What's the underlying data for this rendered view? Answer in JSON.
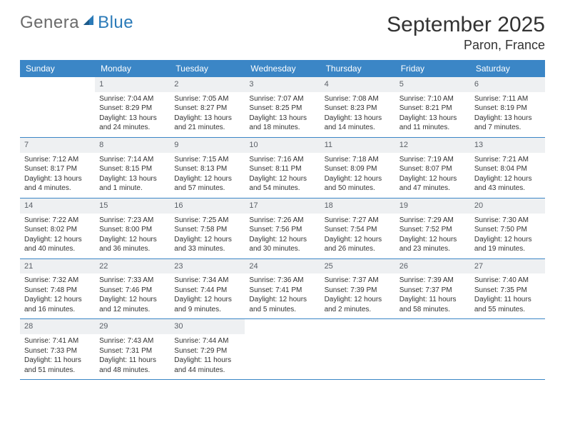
{
  "logo": {
    "text_left": "Genera",
    "text_right": "Blue",
    "sail_color": "#2a7ab8"
  },
  "title": "September 2025",
  "location": "Paron, France",
  "header_bg": "#3b86c6",
  "header_text_color": "#ffffff",
  "dayname_bg": "#eef0f2",
  "divider_color": "#3b86c6",
  "weekdays": [
    "Sunday",
    "Monday",
    "Tuesday",
    "Wednesday",
    "Thursday",
    "Friday",
    "Saturday"
  ],
  "weeks": [
    [
      {
        "blank": true
      },
      {
        "n": "1",
        "sunrise": "7:04 AM",
        "sunset": "8:29 PM",
        "daylight": "13 hours and 24 minutes."
      },
      {
        "n": "2",
        "sunrise": "7:05 AM",
        "sunset": "8:27 PM",
        "daylight": "13 hours and 21 minutes."
      },
      {
        "n": "3",
        "sunrise": "7:07 AM",
        "sunset": "8:25 PM",
        "daylight": "13 hours and 18 minutes."
      },
      {
        "n": "4",
        "sunrise": "7:08 AM",
        "sunset": "8:23 PM",
        "daylight": "13 hours and 14 minutes."
      },
      {
        "n": "5",
        "sunrise": "7:10 AM",
        "sunset": "8:21 PM",
        "daylight": "13 hours and 11 minutes."
      },
      {
        "n": "6",
        "sunrise": "7:11 AM",
        "sunset": "8:19 PM",
        "daylight": "13 hours and 7 minutes."
      }
    ],
    [
      {
        "n": "7",
        "sunrise": "7:12 AM",
        "sunset": "8:17 PM",
        "daylight": "13 hours and 4 minutes."
      },
      {
        "n": "8",
        "sunrise": "7:14 AM",
        "sunset": "8:15 PM",
        "daylight": "13 hours and 1 minute."
      },
      {
        "n": "9",
        "sunrise": "7:15 AM",
        "sunset": "8:13 PM",
        "daylight": "12 hours and 57 minutes."
      },
      {
        "n": "10",
        "sunrise": "7:16 AM",
        "sunset": "8:11 PM",
        "daylight": "12 hours and 54 minutes."
      },
      {
        "n": "11",
        "sunrise": "7:18 AM",
        "sunset": "8:09 PM",
        "daylight": "12 hours and 50 minutes."
      },
      {
        "n": "12",
        "sunrise": "7:19 AM",
        "sunset": "8:07 PM",
        "daylight": "12 hours and 47 minutes."
      },
      {
        "n": "13",
        "sunrise": "7:21 AM",
        "sunset": "8:04 PM",
        "daylight": "12 hours and 43 minutes."
      }
    ],
    [
      {
        "n": "14",
        "sunrise": "7:22 AM",
        "sunset": "8:02 PM",
        "daylight": "12 hours and 40 minutes."
      },
      {
        "n": "15",
        "sunrise": "7:23 AM",
        "sunset": "8:00 PM",
        "daylight": "12 hours and 36 minutes."
      },
      {
        "n": "16",
        "sunrise": "7:25 AM",
        "sunset": "7:58 PM",
        "daylight": "12 hours and 33 minutes."
      },
      {
        "n": "17",
        "sunrise": "7:26 AM",
        "sunset": "7:56 PM",
        "daylight": "12 hours and 30 minutes."
      },
      {
        "n": "18",
        "sunrise": "7:27 AM",
        "sunset": "7:54 PM",
        "daylight": "12 hours and 26 minutes."
      },
      {
        "n": "19",
        "sunrise": "7:29 AM",
        "sunset": "7:52 PM",
        "daylight": "12 hours and 23 minutes."
      },
      {
        "n": "20",
        "sunrise": "7:30 AM",
        "sunset": "7:50 PM",
        "daylight": "12 hours and 19 minutes."
      }
    ],
    [
      {
        "n": "21",
        "sunrise": "7:32 AM",
        "sunset": "7:48 PM",
        "daylight": "12 hours and 16 minutes."
      },
      {
        "n": "22",
        "sunrise": "7:33 AM",
        "sunset": "7:46 PM",
        "daylight": "12 hours and 12 minutes."
      },
      {
        "n": "23",
        "sunrise": "7:34 AM",
        "sunset": "7:44 PM",
        "daylight": "12 hours and 9 minutes."
      },
      {
        "n": "24",
        "sunrise": "7:36 AM",
        "sunset": "7:41 PM",
        "daylight": "12 hours and 5 minutes."
      },
      {
        "n": "25",
        "sunrise": "7:37 AM",
        "sunset": "7:39 PM",
        "daylight": "12 hours and 2 minutes."
      },
      {
        "n": "26",
        "sunrise": "7:39 AM",
        "sunset": "7:37 PM",
        "daylight": "11 hours and 58 minutes."
      },
      {
        "n": "27",
        "sunrise": "7:40 AM",
        "sunset": "7:35 PM",
        "daylight": "11 hours and 55 minutes."
      }
    ],
    [
      {
        "n": "28",
        "sunrise": "7:41 AM",
        "sunset": "7:33 PM",
        "daylight": "11 hours and 51 minutes."
      },
      {
        "n": "29",
        "sunrise": "7:43 AM",
        "sunset": "7:31 PM",
        "daylight": "11 hours and 48 minutes."
      },
      {
        "n": "30",
        "sunrise": "7:44 AM",
        "sunset": "7:29 PM",
        "daylight": "11 hours and 44 minutes."
      },
      {
        "blank": true
      },
      {
        "blank": true
      },
      {
        "blank": true
      },
      {
        "blank": true
      }
    ]
  ],
  "labels": {
    "sunrise": "Sunrise:",
    "sunset": "Sunset:",
    "daylight": "Daylight:"
  },
  "fonts": {
    "title_pt": 30,
    "location_pt": 18,
    "header_pt": 12,
    "daynum_pt": 11,
    "body_pt": 10
  }
}
